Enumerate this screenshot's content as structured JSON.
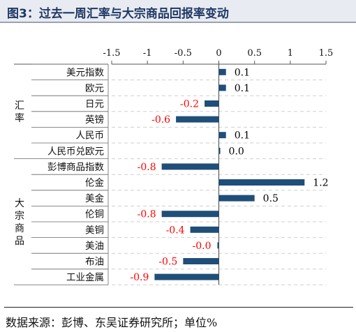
{
  "title": "图3：过去一周汇率与大宗商品回报率变动",
  "source": "数据来源：彭博、东吴证券研究所；单位%",
  "colors": {
    "bar": "#1f4e79",
    "positive_label": "#000000",
    "negative_label": "#ff0000",
    "title": "#1f3864"
  },
  "chart_data": {
    "type": "bar",
    "orientation": "horizontal",
    "xlim": [
      -1.5,
      1.5
    ],
    "x_ticks": [
      "-1.5",
      "-1",
      "-0.5",
      "0",
      "0.5",
      "1",
      "1.5"
    ],
    "grid": "horizontal dashed",
    "groups": [
      {
        "name": "汇率",
        "items": [
          0,
          1,
          2,
          3,
          4,
          5
        ]
      },
      {
        "name": "大宗商品",
        "items": [
          6,
          7,
          8,
          9,
          10,
          11,
          12,
          13
        ]
      }
    ],
    "categories": [
      "美元指数",
      "欧元",
      "日元",
      "英镑",
      "人民币",
      "人民币兑欧元",
      "彭博商品指数",
      "伦金",
      "美金",
      "伦铜",
      "美铜",
      "美油",
      "布油",
      "工业金属"
    ],
    "values": [
      0.1,
      0.1,
      -0.2,
      -0.6,
      0.1,
      0.02,
      -0.8,
      1.2,
      0.5,
      -0.8,
      -0.4,
      -0.02,
      -0.5,
      -0.9
    ],
    "value_labels": [
      "0.1",
      "0.1",
      "-0.2",
      "-0.6",
      "0.1",
      "0.0",
      "-0.8",
      "1.2",
      "0.5",
      "-0.8",
      "-0.4",
      "-0.0",
      "-0.5",
      "-0.9"
    ]
  }
}
